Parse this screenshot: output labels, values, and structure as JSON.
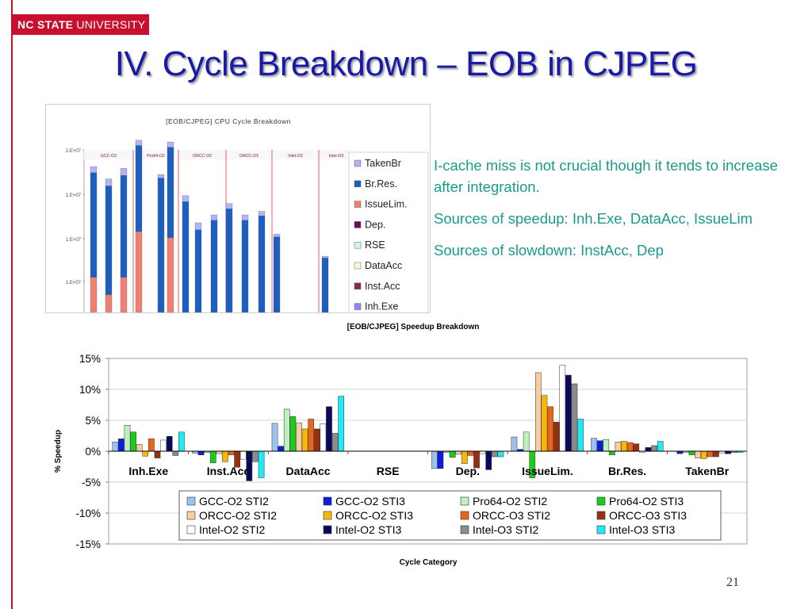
{
  "header": {
    "logo_bold": "NC STATE",
    "logo_rest": "UNIVERSITY",
    "title": "IV. Cycle Breakdown – EOB in CJPEG",
    "page_number": "21"
  },
  "bullets": [
    "I-cache miss is not crucial though it tends to increase after integration.",
    "Sources of speedup: Inh.Exe, DataAcc, IssueLim",
    "Sources of slowdown: InstAcc, Dep"
  ],
  "colors": {
    "title": "#1a1aa8",
    "bullets": "#1a9b8a",
    "brand_red": "#c8102e"
  },
  "chart_data": [
    {
      "type": "bar",
      "stacked": true,
      "title": "[EOB/CJPEG] CPU Cycle Breakdown",
      "groups": [
        "GCC-O2",
        "Pro64-O2",
        "ORCC-O2",
        "ORCC-O3",
        "Intel-O2",
        "Intel-O3"
      ],
      "y_tick_labels": [
        "2.E+07",
        "1.E+07",
        "1.E+07",
        "1.E+07"
      ],
      "legend": [
        "TakenBr",
        "Br.Res.",
        "IssueLim.",
        "Dep.",
        "RSE",
        "DataAcc",
        "Inst.Acc",
        "Inh.Exe"
      ],
      "legend_colors": [
        "#b4b4f0",
        "#1c5fc0",
        "#f08070",
        "#6a0a5a",
        "#c8f4f4",
        "#fafad0",
        "#8a2a4a",
        "#8a8af0"
      ],
      "colors": {
        "takenbr": "#b4b4f0",
        "brres": "#1c5fc0",
        "issuelim": "#f08070"
      },
      "visible_totals": [
        16600000.0,
        16300000.0,
        16900000.0,
        19600000.0,
        15900000.0,
        19300000.0,
        13300000.0,
        10200000.0,
        10800000.0,
        12400000.0,
        11100000.0,
        11500000.0,
        8900000.0,
        6400000.0
      ],
      "visible_bars": [
        {
          "issuelim": 4000000.0,
          "brres": 11900000.0,
          "takenbr": 700000.0
        },
        {
          "issuelim": 2000000.0,
          "brres": 12400000.0,
          "takenbr": 800000.0
        },
        {
          "issuelim": 4000000.0,
          "brres": 11600000.0,
          "takenbr": 800000.0
        },
        {
          "issuelim": 9200000.0,
          "brres": 9800000.0,
          "takenbr": 600000.0
        },
        {
          "issuelim": 0.0,
          "brres": 15300000.0,
          "takenbr": 400000.0
        },
        {
          "issuelim": 8500000.0,
          "brres": 10300000.0,
          "takenbr": 600000.0
        },
        {
          "issuelim": 0.0,
          "brres": 12600000.0,
          "takenbr": 700000.0
        },
        {
          "issuelim": 0.0,
          "brres": 9400000.0,
          "takenbr": 800000.0
        },
        {
          "issuelim": 0.0,
          "brres": 10500000.0,
          "takenbr": 600000.0
        },
        {
          "issuelim": 0.0,
          "brres": 11800000.0,
          "takenbr": 600000.0
        },
        {
          "issuelim": 0.0,
          "brres": 10500000.0,
          "takenbr": 600000.0
        },
        {
          "issuelim": 0.0,
          "brres": 11000000.0,
          "takenbr": 500000.0
        },
        {
          "issuelim": 0.0,
          "brres": 8600000.0,
          "takenbr": 300000.0
        },
        {
          "issuelim": 0.0,
          "brres": 6200000.0,
          "takenbr": 200000.0
        }
      ]
    },
    {
      "type": "bar",
      "title": "[EOB/CJPEG] Speedup Breakdown",
      "xlabel": "Cycle Category",
      "ylabel": "% Speedup",
      "ylim": [
        -15,
        15
      ],
      "y_ticks": [
        15,
        10,
        5,
        0,
        -5,
        -10,
        -15
      ],
      "y_tick_labels": [
        "15%",
        "10%",
        "5%",
        "0%",
        "-5%",
        "-10%",
        "-15%"
      ],
      "grid": true,
      "legend_position": "bottom-center",
      "categories": [
        "Inh.Exe",
        "Inst.Acc",
        "DataAcc",
        "RSE",
        "Dep.",
        "IssueLim.",
        "Br.Res.",
        "TakenBr"
      ],
      "series": [
        {
          "name": "GCC-O2 STI2",
          "color": "#9cc3ee",
          "values": [
            1.5,
            -0.3,
            4.5,
            0,
            -2.8,
            2.3,
            2.1,
            0
          ]
        },
        {
          "name": "GCC-O2 STI3",
          "color": "#0a1edc",
          "values": [
            2.0,
            -0.6,
            0.8,
            0,
            -2.8,
            0.3,
            1.7,
            -0.4
          ]
        },
        {
          "name": "Pro64-O2 STI2",
          "color": "#bdf0bd",
          "values": [
            4.2,
            -0.2,
            6.8,
            0,
            -0.2,
            3.1,
            1.9,
            -0.2
          ]
        },
        {
          "name": "Pro64-O2 STI3",
          "color": "#1ccc1c",
          "values": [
            3.1,
            -1.9,
            5.6,
            0,
            -1.0,
            -4.3,
            -0.6,
            -0.6
          ]
        },
        {
          "name": "ORCC-O2 STI2",
          "color": "#f8cca4",
          "values": [
            1.1,
            -0.4,
            4.6,
            0,
            -0.5,
            12.7,
            1.5,
            -1.1
          ]
        },
        {
          "name": "ORCC-O2 STI3",
          "color": "#f8b808",
          "values": [
            -0.8,
            -1.7,
            3.6,
            0,
            -2.0,
            9.0,
            1.6,
            -1.2
          ]
        },
        {
          "name": "ORCC-O3 STI2",
          "color": "#e8661a",
          "values": [
            2.0,
            -0.6,
            5.2,
            0,
            -0.7,
            7.2,
            1.4,
            -0.9
          ]
        },
        {
          "name": "ORCC-O3 STI3",
          "color": "#983010",
          "values": [
            -1.1,
            -2.6,
            3.6,
            0,
            -2.7,
            4.7,
            1.2,
            -0.9
          ]
        },
        {
          "name": "Intel-O2 STI2",
          "color": "#ffffff",
          "values": [
            1.8,
            -1.3,
            4.4,
            0,
            -0.4,
            13.9,
            -0.2,
            -0.3
          ]
        },
        {
          "name": "Intel-O2 STI3",
          "color": "#0a0a5c",
          "values": [
            2.4,
            -4.8,
            7.2,
            0,
            -3.0,
            12.3,
            0.6,
            -0.4
          ]
        },
        {
          "name": "Intel-O3 STI2",
          "color": "#8c8c8c",
          "values": [
            -0.7,
            -1.7,
            2.9,
            0,
            -0.9,
            10.9,
            0.9,
            -0.2
          ]
        },
        {
          "name": "Intel-O3 STI3",
          "color": "#1eecf4",
          "values": [
            3.1,
            -4.3,
            8.9,
            0,
            -0.9,
            5.2,
            1.6,
            -0.2
          ]
        }
      ]
    }
  ]
}
